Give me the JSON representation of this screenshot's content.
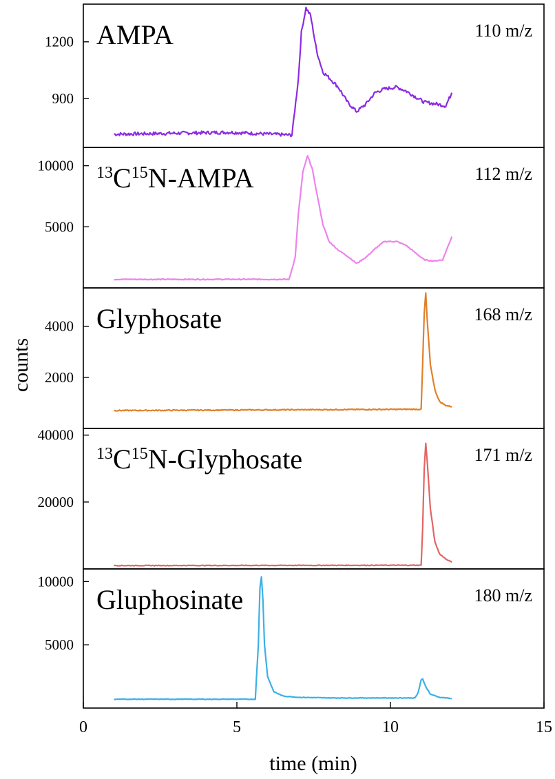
{
  "chart_data": {
    "type": "line",
    "xlabel": "time (min)",
    "ylabel": "counts",
    "xlim": [
      0,
      15
    ],
    "xticks": [
      0,
      5,
      10,
      15
    ],
    "grid": false,
    "panels": [
      {
        "label_parts": [
          {
            "text": "AMPA",
            "sup": false
          }
        ],
        "mz": "110 m/z",
        "color": "#8b2be2",
        "ylim": [
          640,
          1400
        ],
        "yticks": [
          900,
          1200
        ],
        "baseline": 710,
        "noise": 9,
        "baseline_segments": [
          [
            1,
            710
          ],
          [
            4.8,
            720
          ],
          [
            6.8,
            705
          ]
        ],
        "points": [
          [
            6.8,
            715
          ],
          [
            7.0,
            1000
          ],
          [
            7.1,
            1250
          ],
          [
            7.25,
            1380
          ],
          [
            7.4,
            1340
          ],
          [
            7.6,
            1150
          ],
          [
            7.8,
            1040
          ],
          [
            8.0,
            1010
          ],
          [
            8.3,
            960
          ],
          [
            8.6,
            880
          ],
          [
            8.9,
            830
          ],
          [
            9.2,
            870
          ],
          [
            9.5,
            930
          ],
          [
            9.8,
            950
          ],
          [
            10.2,
            960
          ],
          [
            10.5,
            940
          ],
          [
            10.8,
            910
          ],
          [
            11.1,
            880
          ],
          [
            11.5,
            870
          ],
          [
            11.8,
            860
          ],
          [
            12.0,
            930
          ]
        ]
      },
      {
        "label_parts": [
          {
            "text": "13",
            "sup": true
          },
          {
            "text": "C",
            "sup": false
          },
          {
            "text": "15",
            "sup": true
          },
          {
            "text": "N-AMPA",
            "sup": false
          }
        ],
        "mz": "112 m/z",
        "color": "#ee82ee",
        "ylim": [
          0,
          11500
        ],
        "yticks": [
          5000,
          10000
        ],
        "baseline": 700,
        "noise": 40,
        "baseline_segments": [
          [
            1,
            700
          ],
          [
            6.7,
            700
          ]
        ],
        "points": [
          [
            6.7,
            700
          ],
          [
            6.9,
            2500
          ],
          [
            7.0,
            6000
          ],
          [
            7.15,
            9500
          ],
          [
            7.3,
            10800
          ],
          [
            7.45,
            9800
          ],
          [
            7.6,
            7800
          ],
          [
            7.8,
            5200
          ],
          [
            8.0,
            3800
          ],
          [
            8.3,
            3100
          ],
          [
            8.6,
            2600
          ],
          [
            8.9,
            2000
          ],
          [
            9.2,
            2500
          ],
          [
            9.5,
            3200
          ],
          [
            9.8,
            3800
          ],
          [
            10.2,
            3800
          ],
          [
            10.5,
            3500
          ],
          [
            10.8,
            2900
          ],
          [
            11.1,
            2300
          ],
          [
            11.4,
            2200
          ],
          [
            11.7,
            2300
          ],
          [
            12.0,
            4200
          ]
        ]
      },
      {
        "label_parts": [
          {
            "text": "Glyphosate",
            "sup": false
          }
        ],
        "mz": "168 m/z",
        "color": "#e0802a",
        "ylim": [
          0,
          5500
        ],
        "yticks": [
          2000,
          4000
        ],
        "baseline": 700,
        "noise": 20,
        "baseline_segments": [
          [
            1,
            700
          ],
          [
            11.0,
            750
          ]
        ],
        "points": [
          [
            11.0,
            760
          ],
          [
            11.05,
            2500
          ],
          [
            11.1,
            4500
          ],
          [
            11.15,
            5300
          ],
          [
            11.2,
            4200
          ],
          [
            11.3,
            2500
          ],
          [
            11.45,
            1500
          ],
          [
            11.6,
            1050
          ],
          [
            11.8,
            900
          ],
          [
            12.0,
            850
          ]
        ]
      },
      {
        "label_parts": [
          {
            "text": "13",
            "sup": true
          },
          {
            "text": "C",
            "sup": false
          },
          {
            "text": "15",
            "sup": true
          },
          {
            "text": "N-Glyphosate",
            "sup": false
          }
        ],
        "mz": "171 m/z",
        "color": "#e46464",
        "ylim": [
          0,
          42000
        ],
        "yticks": [
          20000,
          40000
        ],
        "baseline": 1000,
        "noise": 90,
        "baseline_segments": [
          [
            1,
            1000
          ],
          [
            11.0,
            1100
          ]
        ],
        "points": [
          [
            11.0,
            1200
          ],
          [
            11.05,
            12000
          ],
          [
            11.1,
            30000
          ],
          [
            11.15,
            37500
          ],
          [
            11.2,
            32000
          ],
          [
            11.3,
            18000
          ],
          [
            11.45,
            8000
          ],
          [
            11.6,
            4500
          ],
          [
            11.8,
            3000
          ],
          [
            12.0,
            2000
          ]
        ]
      },
      {
        "label_parts": [
          {
            "text": "Gluphosinate",
            "sup": false
          }
        ],
        "mz": "180 m/z",
        "color": "#3bb0e6",
        "ylim": [
          0,
          11000
        ],
        "yticks": [
          5000,
          10000
        ],
        "baseline": 700,
        "noise": 25,
        "baseline_segments": [
          [
            1,
            700
          ],
          [
            5.6,
            700
          ]
        ],
        "points": [
          [
            5.6,
            720
          ],
          [
            5.7,
            5000
          ],
          [
            5.75,
            9500
          ],
          [
            5.8,
            10400
          ],
          [
            5.85,
            8500
          ],
          [
            5.9,
            5000
          ],
          [
            6.0,
            2500
          ],
          [
            6.2,
            1300
          ],
          [
            6.5,
            950
          ],
          [
            7.0,
            850
          ],
          [
            8.0,
            800
          ],
          [
            9.0,
            800
          ],
          [
            10.0,
            800
          ],
          [
            10.8,
            800
          ],
          [
            10.9,
            1200
          ],
          [
            11.0,
            2200
          ],
          [
            11.05,
            2300
          ],
          [
            11.15,
            1700
          ],
          [
            11.3,
            1100
          ],
          [
            11.6,
            850
          ],
          [
            12.0,
            750
          ]
        ]
      }
    ]
  }
}
